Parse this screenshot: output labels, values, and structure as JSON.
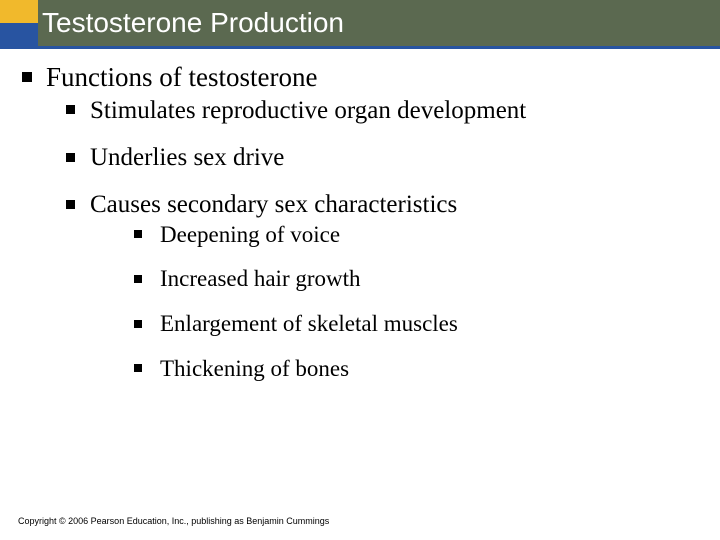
{
  "slide": {
    "title": "Testosterone Production",
    "colors": {
      "title_bg": "#5b6950",
      "accent_top": "#f1b92c",
      "accent_bottom": "#2854a1",
      "underline": "#2854a1",
      "title_text": "#ffffff",
      "body_text": "#000000",
      "bullet": "#000000",
      "background": "#ffffff"
    },
    "typography": {
      "title_fontsize": 28,
      "lvl1_fontsize": 27,
      "lvl2_fontsize": 25,
      "lvl3_fontsize": 23,
      "copyright_fontsize": 9,
      "title_font": "Arial",
      "body_font": "Times New Roman"
    },
    "bullets": {
      "lvl1": [
        {
          "text": "Functions of testosterone"
        }
      ],
      "lvl2": [
        {
          "text": "Stimulates reproductive organ development"
        },
        {
          "text": "Underlies sex drive"
        },
        {
          "text": "Causes secondary sex characteristics"
        }
      ],
      "lvl3": [
        {
          "text": "Deepening of voice"
        },
        {
          "text": "Increased hair growth"
        },
        {
          "text": "Enlargement of skeletal muscles"
        },
        {
          "text": "Thickening of bones"
        }
      ]
    },
    "copyright": "Copyright © 2006 Pearson Education, Inc., publishing as Benjamin Cummings"
  }
}
